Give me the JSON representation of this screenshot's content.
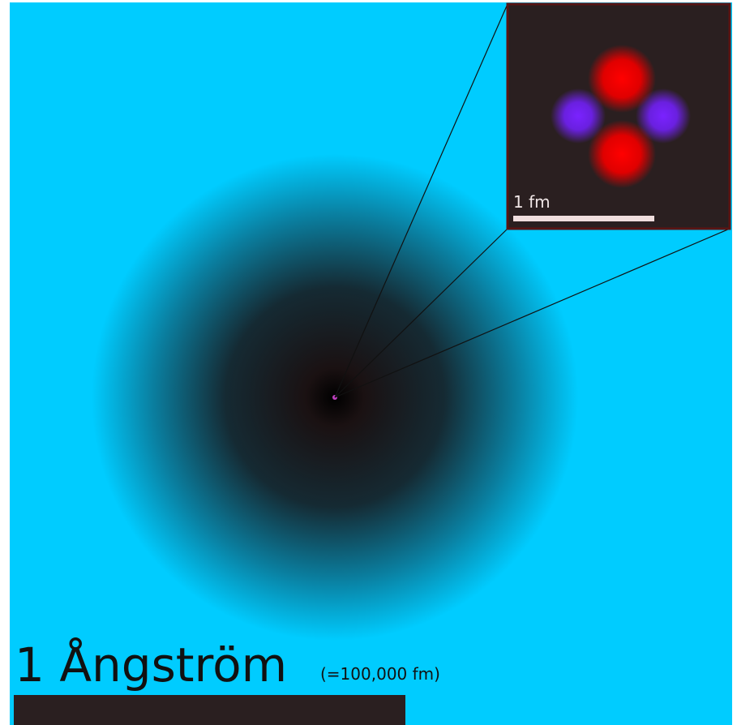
{
  "scale": {
    "label": "1 Ångström",
    "note": "(=100,000 fm)"
  },
  "inset": {
    "scale_label": "1 fm"
  }
}
